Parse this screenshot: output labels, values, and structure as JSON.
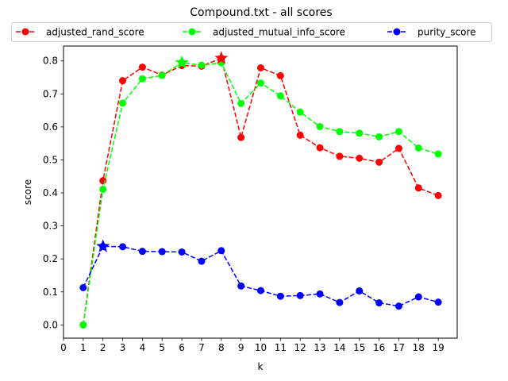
{
  "chart_data": {
    "type": "line",
    "title": "Compound.txt - all scores",
    "xlabel": "k",
    "ylabel": "score",
    "xlim": [
      0,
      19.96
    ],
    "ylim": [
      -0.04,
      0.845
    ],
    "xticks": [
      "0",
      "1",
      "2",
      "3",
      "4",
      "5",
      "6",
      "7",
      "8",
      "9",
      "10",
      "11",
      "12",
      "13",
      "14",
      "15",
      "16",
      "17",
      "18",
      "19"
    ],
    "yticks": [
      "0.0",
      "0.1",
      "0.2",
      "0.3",
      "0.4",
      "0.5",
      "0.6",
      "0.7",
      "0.8"
    ],
    "x": [
      1,
      2,
      3,
      4,
      5,
      6,
      7,
      8,
      9,
      10,
      11,
      12,
      13,
      14,
      15,
      16,
      17,
      18,
      19
    ],
    "legend_position": "top",
    "series": [
      {
        "name": "adjusted_rand_score",
        "color": "#ff0000",
        "values": [
          0.0,
          0.437,
          0.74,
          0.781,
          0.757,
          0.786,
          0.784,
          0.808,
          0.568,
          0.779,
          0.755,
          0.575,
          0.537,
          0.511,
          0.505,
          0.493,
          0.535,
          0.415,
          0.392
        ],
        "best": {
          "x": 8,
          "y": 0.808
        }
      },
      {
        "name": "adjusted_mutual_info_score",
        "color": "#00ff00",
        "values": [
          0.0,
          0.411,
          0.672,
          0.746,
          0.756,
          0.795,
          0.787,
          0.794,
          0.671,
          0.733,
          0.694,
          0.645,
          0.601,
          0.586,
          0.581,
          0.57,
          0.586,
          0.536,
          0.518
        ],
        "best": {
          "x": 6,
          "y": 0.795
        }
      },
      {
        "name": "purity_score",
        "color": "#0000ff",
        "values": [
          0.113,
          0.238,
          0.237,
          0.223,
          0.222,
          0.221,
          0.193,
          0.225,
          0.118,
          0.104,
          0.087,
          0.089,
          0.094,
          0.068,
          0.103,
          0.067,
          0.057,
          0.085,
          0.069
        ],
        "best": {
          "x": 2,
          "y": 0.238
        }
      }
    ]
  }
}
